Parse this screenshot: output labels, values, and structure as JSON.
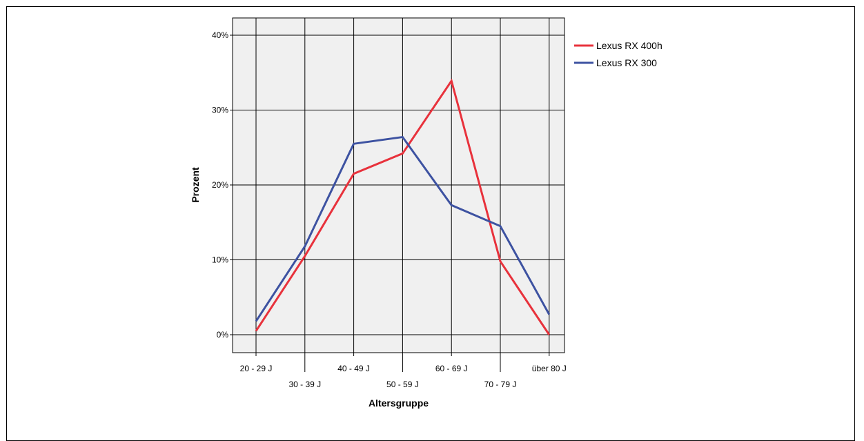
{
  "chart_data": {
    "type": "line",
    "categories": [
      "20 - 29 J",
      "30 - 39 J",
      "40 - 49 J",
      "50 - 59 J",
      "60 - 69 J",
      "70 - 79 J",
      "über 80 J"
    ],
    "series": [
      {
        "name": "Lexus RX 400h",
        "color": "#e8323c",
        "values": [
          0.5,
          10.5,
          21.5,
          24.2,
          33.9,
          9.8,
          0.0
        ]
      },
      {
        "name": "Lexus RX 300",
        "color": "#3d52a1",
        "values": [
          1.8,
          11.8,
          25.5,
          26.4,
          17.3,
          14.5,
          2.7
        ]
      }
    ],
    "yticks": [
      "0%",
      "10%",
      "20%",
      "30%",
      "40%"
    ],
    "ylim": [
      0,
      40
    ],
    "xlabel": "Altersgruppe",
    "ylabel": "Prozent",
    "grid": true,
    "legend_position": "top-right",
    "plot_background": "#f0f0f0"
  }
}
